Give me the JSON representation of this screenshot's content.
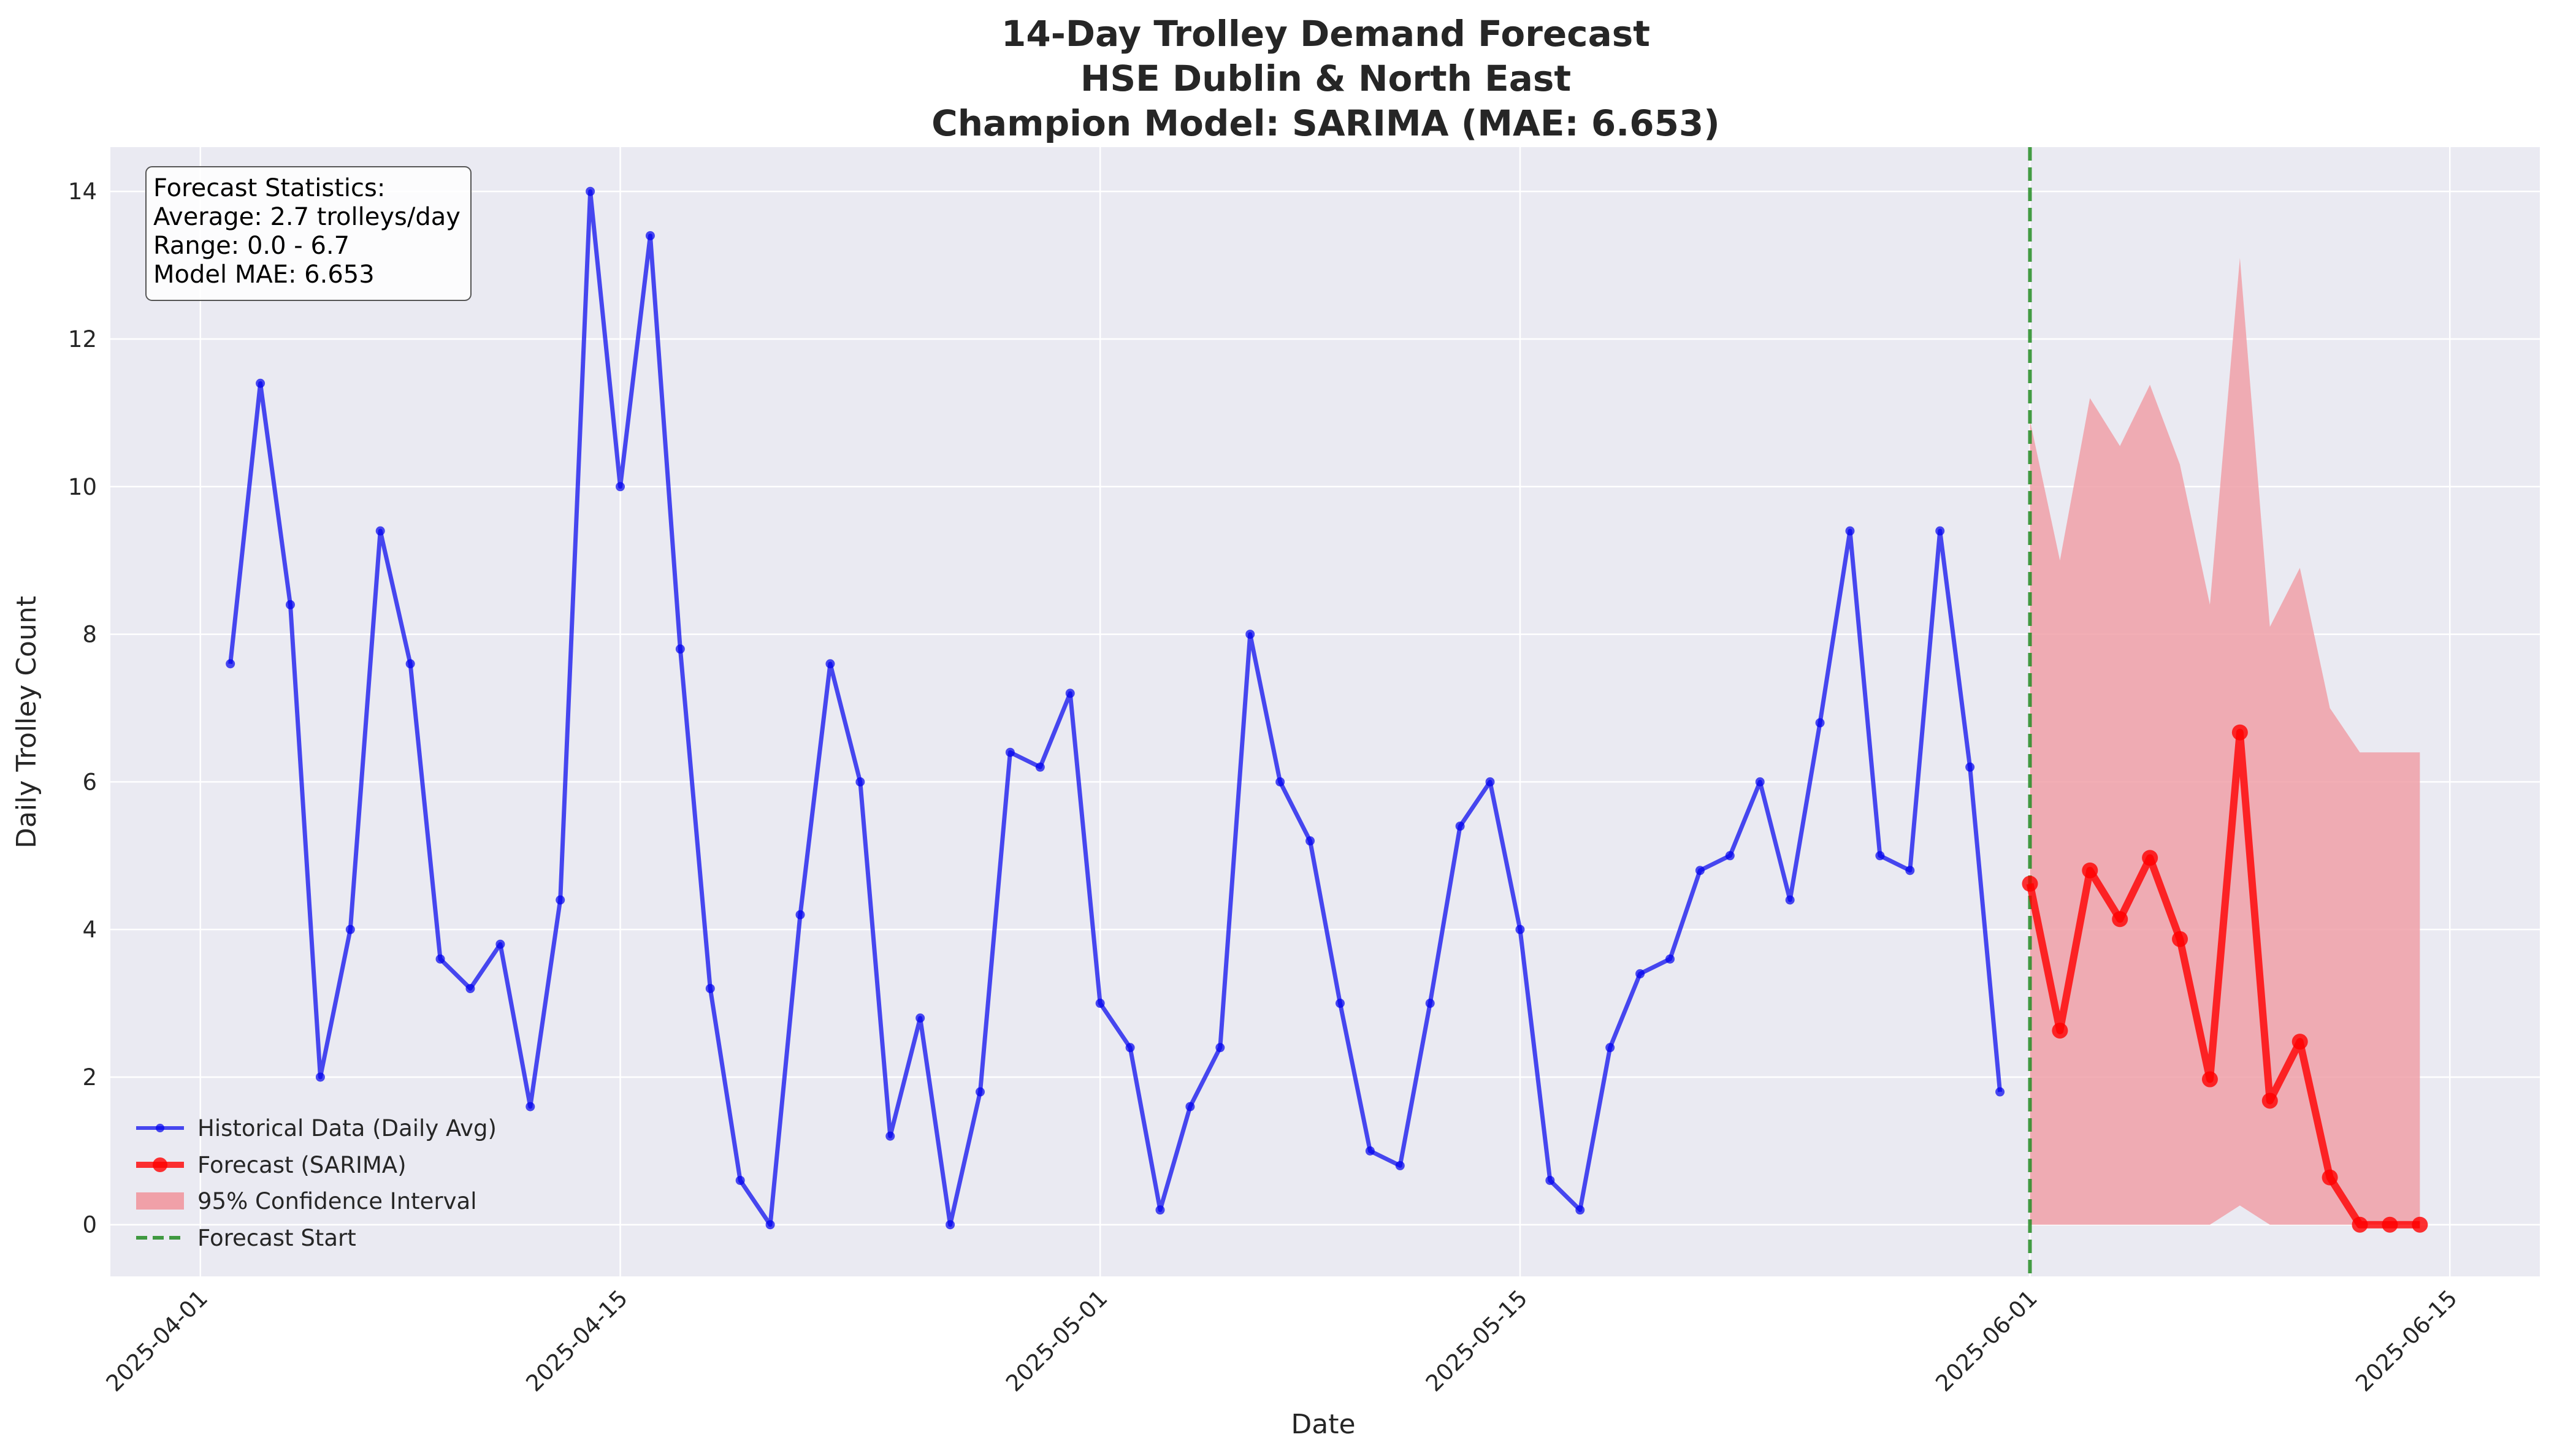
{
  "chart_data": {
    "type": "line",
    "title_lines": [
      "14-Day Trolley Demand Forecast",
      "HSE Dublin & North East",
      "Champion Model: SARIMA (MAE: 6.653)"
    ],
    "xlabel": "Date",
    "ylabel": "Daily Trolley Count",
    "xlim": [
      "2025-03-29",
      "2025-06-18"
    ],
    "ylim": [
      -0.7,
      14.6
    ],
    "x_ticks": [
      "2025-04-01",
      "2025-04-15",
      "2025-05-01",
      "2025-05-15",
      "2025-06-01",
      "2025-06-15"
    ],
    "y_ticks": [
      0,
      2,
      4,
      6,
      8,
      10,
      12,
      14
    ],
    "grid": true,
    "legend_position": "lower-left",
    "colors": {
      "historical": "#0000ee",
      "forecast": "#ff0000",
      "confidence": "#f0a0a8",
      "forecast_start": "#228b22",
      "plot_background": "#eaeaf2"
    },
    "legend": [
      {
        "label": "Historical Data (Daily Avg)",
        "kind": "line-marker",
        "series": "historical"
      },
      {
        "label": "Forecast (SARIMA)",
        "kind": "line-marker-thick",
        "series": "forecast"
      },
      {
        "label": "95% Confidence Interval",
        "kind": "patch",
        "series": "confidence"
      },
      {
        "label": "Forecast Start",
        "kind": "dashed",
        "series": "forecast_start"
      }
    ],
    "stats_box": [
      "Forecast Statistics:",
      "Average: 2.7 trolleys/day",
      "Range: 0.0 - 6.7",
      "Model MAE: 6.653"
    ],
    "forecast_start_date": "2025-06-01",
    "series": [
      {
        "name": "Historical Data (Daily Avg)",
        "key": "historical",
        "start_date": "2025-04-02",
        "values": [
          7.6,
          11.4,
          8.4,
          2.0,
          4.0,
          9.4,
          7.6,
          3.6,
          3.2,
          3.8,
          1.6,
          4.4,
          14.0,
          10.0,
          13.4,
          7.8,
          3.2,
          0.6,
          0.0,
          4.2,
          7.6,
          6.0,
          1.2,
          2.8,
          0.0,
          1.8,
          6.4,
          6.2,
          7.2,
          3.0,
          2.4,
          0.2,
          1.6,
          2.4,
          8.0,
          6.0,
          5.2,
          3.0,
          1.0,
          0.8,
          3.0,
          5.4,
          6.0,
          4.0,
          0.6,
          0.2,
          2.4,
          3.4,
          3.6,
          4.8,
          5.0,
          6.0,
          4.4,
          6.8,
          9.4,
          5.0,
          4.8,
          9.4,
          6.2,
          1.8
        ]
      },
      {
        "name": "Forecast (SARIMA)",
        "key": "forecast",
        "start_date": "2025-06-01",
        "values": [
          4.62,
          2.63,
          4.8,
          4.14,
          4.97,
          3.87,
          1.97,
          6.67,
          1.68,
          2.48,
          0.64,
          0.0,
          0.0,
          0.0
        ]
      },
      {
        "name": "95% Confidence Interval",
        "key": "confidence",
        "start_date": "2025-06-01",
        "upper": [
          10.9,
          9.0,
          11.2,
          10.55,
          11.38,
          10.3,
          8.4,
          13.1,
          8.1,
          8.9,
          7.0,
          6.4,
          6.4,
          6.4
        ],
        "lower": [
          0.0,
          0.0,
          0.0,
          0.0,
          0.0,
          0.0,
          0.0,
          0.26,
          0.0,
          0.0,
          0.0,
          0.0,
          0.0,
          0.0
        ]
      }
    ]
  }
}
